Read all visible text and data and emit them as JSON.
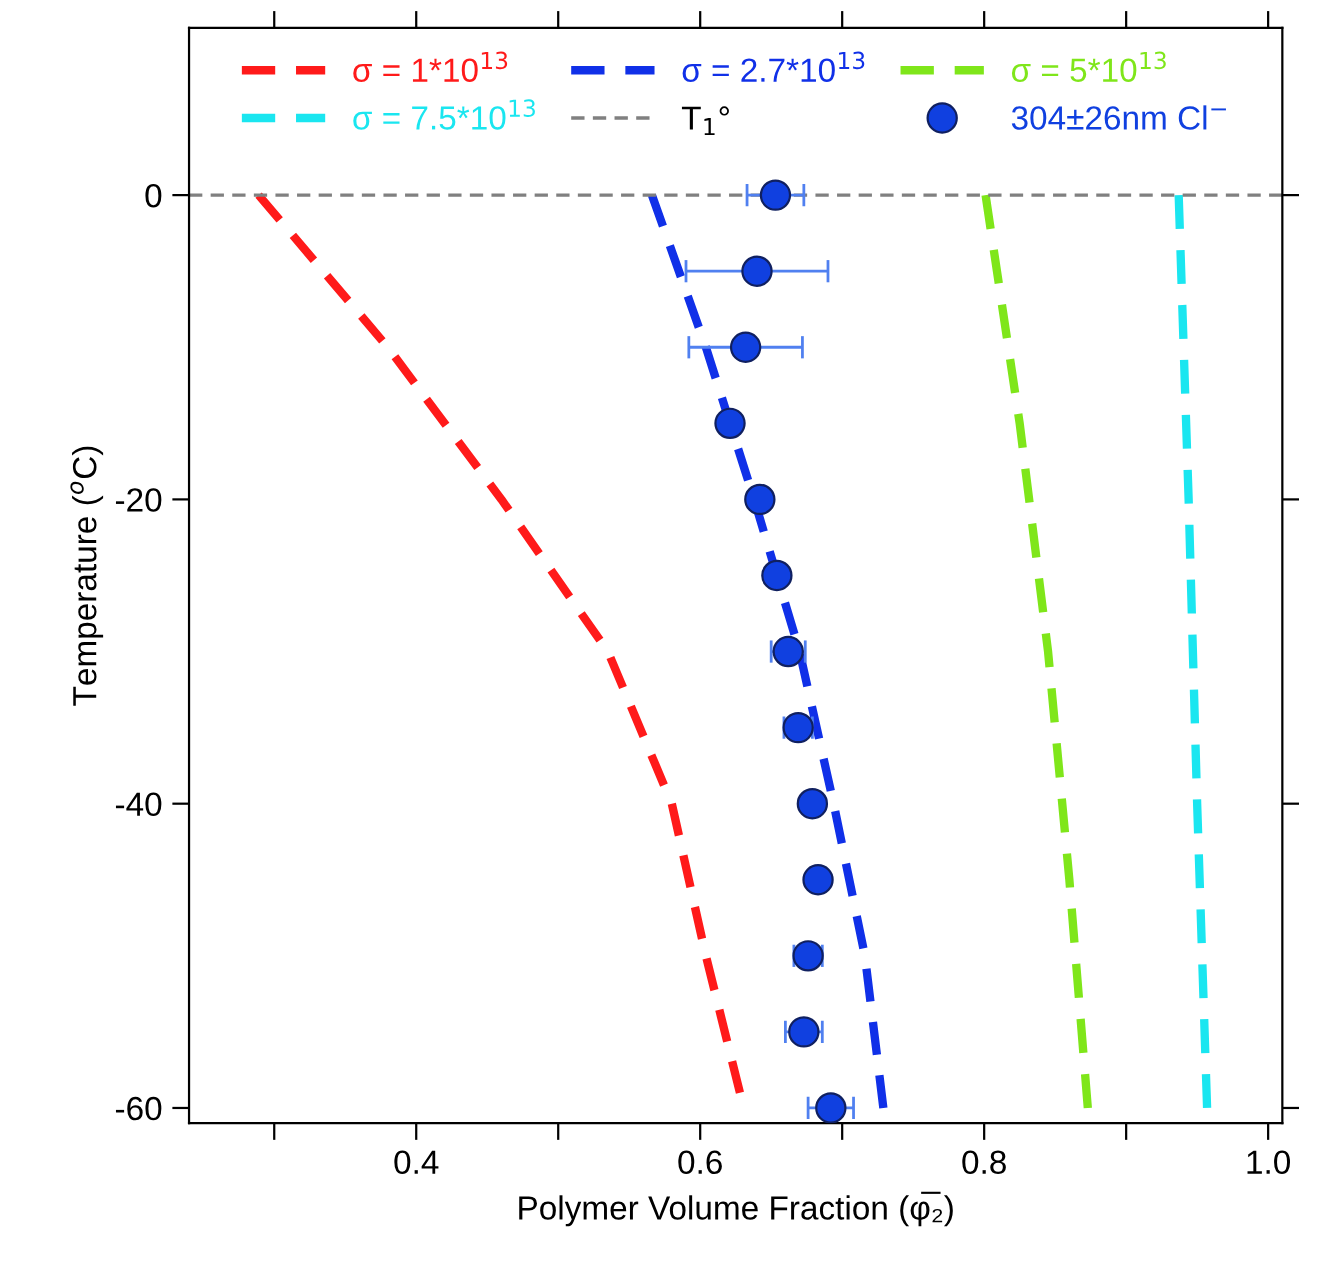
{
  "chart_data": {
    "type": "line",
    "xlabel": "Polymer Volume Fraction (φ̅₂)",
    "ylabel": "Temperature ($^{o}$C)",
    "xlim": [
      0.24,
      1.01
    ],
    "ylim": [
      -61,
      11
    ],
    "xticks": [
      {
        "value": 0.3,
        "label": null
      },
      0.4,
      {
        "value": 0.5,
        "label": null
      },
      0.6,
      {
        "value": 0.7,
        "label": null
      },
      0.8,
      {
        "value": 0.9,
        "label": null
      },
      "1.0"
    ],
    "yticks": [
      -60,
      -40,
      -20,
      0
    ],
    "grid": false,
    "legend": "top",
    "line_style": "dashed",
    "series": [
      {
        "name": "σ = 1*10$^{13}$",
        "color": "#ff1a1a",
        "x": [
          0.289,
          0.38,
          0.46,
          0.535,
          0.58,
          0.604,
          0.628
        ],
        "values": [
          0,
          -10,
          -20,
          -30,
          -40,
          -50,
          -59
        ]
      },
      {
        "name": "σ = 2.7*10$^{13}$",
        "color": "#1030e8",
        "x": [
          0.566,
          0.604,
          0.638,
          0.67,
          0.694,
          0.716,
          0.729
        ],
        "values": [
          0,
          -10,
          -20,
          -30,
          -40,
          -50,
          -60
        ]
      },
      {
        "name": "σ = 5*10$^{13}$",
        "color": "#7fe61a",
        "x": [
          0.801,
          0.825,
          0.845,
          0.86,
          0.873
        ],
        "values": [
          0,
          -15,
          -30,
          -45,
          -60
        ]
      },
      {
        "name": "σ = 7.5*10$^{13}$",
        "color": "#1ae6f0",
        "x": [
          0.937,
          0.944,
          0.95,
          0.957
        ],
        "values": [
          0,
          -20,
          -40,
          -60
        ]
      },
      {
        "name": "T$_{1}$°",
        "color": "#808080",
        "x": [
          0.24,
          1.01
        ],
        "values": [
          0,
          0
        ]
      },
      {
        "name": "304±26nm Cl$^{−}$",
        "type": "scatter",
        "marker": "circle",
        "color": "#1040e0",
        "x": [
          0.653,
          0.64,
          0.632,
          0.621,
          0.642,
          0.654,
          0.662,
          0.669,
          0.679,
          0.683,
          0.676,
          0.673,
          0.692
        ],
        "values": [
          0,
          -5,
          -10,
          -15,
          -20,
          -25,
          -30,
          -35,
          -40,
          -45,
          -50,
          -55,
          -60
        ],
        "xerrors": [
          0.02,
          0.05,
          0.04,
          null,
          null,
          null,
          0.012,
          0.01,
          null,
          null,
          0.01,
          0.013,
          0.016
        ]
      }
    ]
  }
}
